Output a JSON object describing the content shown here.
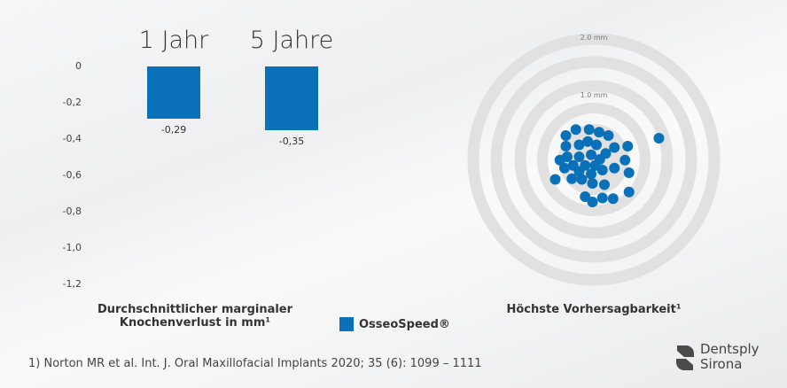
{
  "chart_data": [
    {
      "type": "bar",
      "categories": [
        "1 Jahr",
        "5 Jahre"
      ],
      "values": [
        -0.29,
        -0.35
      ],
      "data_labels": [
        "-0,29",
        "-0,35"
      ],
      "yticks": [
        "0",
        "-0,2",
        "-0,4",
        "-0,6",
        "-0,8",
        "-1,0",
        "-1,2"
      ],
      "ylim": [
        -1.2,
        0
      ],
      "xlabel": "Durchschnittlicher marginaler Knochenverlust in mm¹",
      "series": [
        {
          "name": "OsseoSpeed®",
          "color": "#0a70b8"
        }
      ],
      "legend": "bottom"
    },
    {
      "type": "scatter",
      "title": "Höchste Vorhersagbarkeit¹",
      "ring_labels": [
        "2.0 mm",
        "1.0 mm"
      ],
      "color": "#0a70b8",
      "points_mm": [
        [
          -0.42,
          0.36
        ],
        [
          -0.27,
          0.45
        ],
        [
          -0.07,
          0.45
        ],
        [
          0.08,
          0.41
        ],
        [
          0.22,
          0.36
        ],
        [
          -0.42,
          0.2
        ],
        [
          0.31,
          0.18
        ],
        [
          0.51,
          0.2
        ],
        [
          -0.51,
          -0.01
        ],
        [
          0.47,
          -0.01
        ],
        [
          0.31,
          -0.13
        ],
        [
          0.53,
          -0.2
        ],
        [
          -0.58,
          -0.3
        ],
        [
          -0.33,
          -0.29
        ],
        [
          -0.18,
          -0.3
        ],
        [
          -0.02,
          -0.36
        ],
        [
          0.16,
          -0.38
        ],
        [
          -0.13,
          -0.56
        ],
        [
          -0.02,
          -0.64
        ],
        [
          0.13,
          -0.58
        ],
        [
          0.29,
          -0.59
        ],
        [
          0.53,
          -0.49
        ],
        [
          0.98,
          0.32
        ],
        [
          -0.22,
          0.22
        ],
        [
          -0.09,
          0.27
        ],
        [
          0.04,
          0.22
        ],
        [
          0.18,
          0.09
        ],
        [
          -0.22,
          0.04
        ],
        [
          -0.04,
          0.07
        ],
        [
          0.09,
          0
        ],
        [
          -0.31,
          -0.09
        ],
        [
          -0.13,
          -0.09
        ],
        [
          0.02,
          -0.09
        ],
        [
          0.13,
          -0.16
        ],
        [
          -0.22,
          -0.18
        ],
        [
          -0.4,
          0.04
        ],
        [
          -0.44,
          -0.13
        ],
        [
          -0.04,
          -0.22
        ]
      ]
    }
  ],
  "caption_line1": "Durchschnittlicher marginaler",
  "caption_line2": "Knochenverlust in mm¹",
  "legend_label": "OsseoSpeed®",
  "footnote": "1) Norton MR et al. Int. J. Oral Maxillofacial Implants 2020; 35 (6): 1099 – 1111",
  "logo": {
    "line1": "Dentsply",
    "line2": "Sirona"
  }
}
